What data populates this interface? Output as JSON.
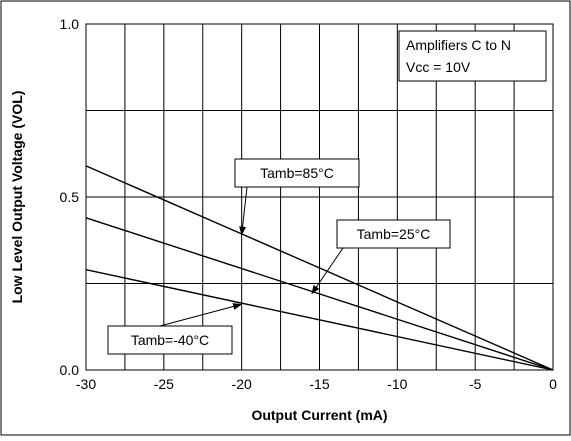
{
  "chart_data": {
    "type": "line",
    "xlabel": "Output Current (mA)",
    "ylabel": "Low Level Output Voltage (VOL)",
    "xlim": [
      -30,
      0
    ],
    "ylim": [
      0.0,
      1.0
    ],
    "x_ticks": [
      -30,
      -25,
      -20,
      -15,
      -10,
      -5,
      0
    ],
    "x_tick_labels": [
      "-30",
      "-25",
      "-20",
      "-15",
      "-10",
      "-5",
      "0"
    ],
    "y_ticks": [
      0.0,
      0.5,
      1.0
    ],
    "y_tick_labels": [
      "0.0",
      "0.5",
      "1.0"
    ],
    "x_grid_step": 2.5,
    "y_grid_step": 0.25,
    "grid": true,
    "info_box": {
      "line1": "Amplifiers C to N",
      "line2": "Vcc = 10V"
    },
    "series": [
      {
        "name": "Tamb=85°C",
        "x": [
          -30,
          0
        ],
        "y": [
          0.59,
          0.0
        ]
      },
      {
        "name": "Tamb=25°C",
        "x": [
          -30,
          0
        ],
        "y": [
          0.44,
          0.0
        ]
      },
      {
        "name": "Tamb=-40°C",
        "x": [
          -30,
          0
        ],
        "y": [
          0.29,
          0.0
        ]
      }
    ],
    "annotations": [
      {
        "series": 0,
        "text": "Tamb=85°C",
        "at": [
          -20,
          0.39
        ]
      },
      {
        "series": 1,
        "text": "Tamb=25°C",
        "at": [
          -15.5,
          0.22
        ]
      },
      {
        "series": 2,
        "text": "Tamb=-40°C",
        "at": [
          -20,
          0.19
        ]
      }
    ]
  }
}
